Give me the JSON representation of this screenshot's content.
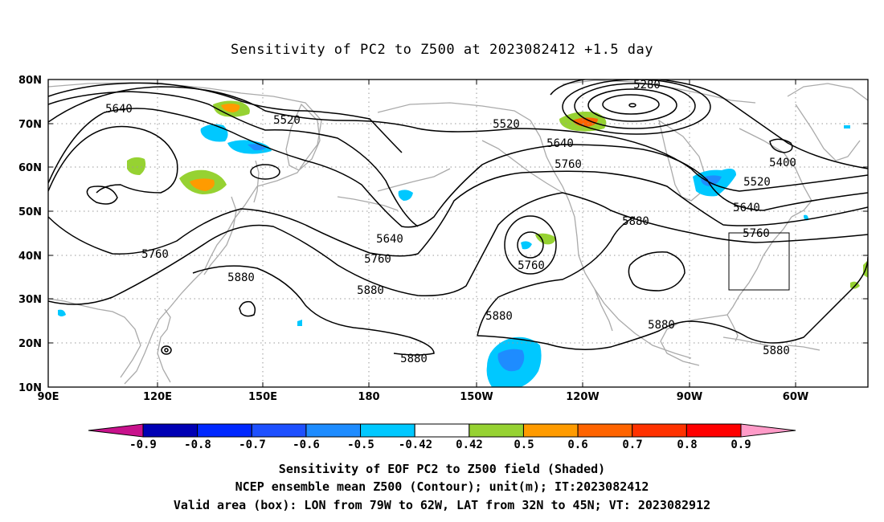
{
  "title": "Sensitivity of PC2 to Z500 at 2023082412 +1.5 day",
  "lat_labels": [
    "80N",
    "70N",
    "60N",
    "50N",
    "40N",
    "30N",
    "20N",
    "10N"
  ],
  "lon_labels": [
    "90E",
    "120E",
    "150E",
    "180",
    "150W",
    "120W",
    "90W",
    "60W"
  ],
  "contour_labels": [
    {
      "text": "5640"
    },
    {
      "text": "5520"
    },
    {
      "text": "5280"
    },
    {
      "text": "5520"
    },
    {
      "text": "5640"
    },
    {
      "text": "5760"
    },
    {
      "text": "5400"
    },
    {
      "text": "5520"
    },
    {
      "text": "5640"
    },
    {
      "text": "5760"
    },
    {
      "text": "5880"
    },
    {
      "text": "5640"
    },
    {
      "text": "5760"
    },
    {
      "text": "5760"
    },
    {
      "text": "5760"
    },
    {
      "text": "5880"
    },
    {
      "text": "5880"
    },
    {
      "text": "5880"
    },
    {
      "text": "5880"
    },
    {
      "text": "5880"
    },
    {
      "text": "5880"
    }
  ],
  "colorbar": {
    "labels": [
      "-0.9",
      "-0.8",
      "-0.7",
      "-0.6",
      "-0.5",
      "-0.42",
      "0.42",
      "0.5",
      "0.6",
      "0.7",
      "0.8",
      "0.9"
    ],
    "colors": [
      "#0000b4",
      "#0028ff",
      "#1e50ff",
      "#1e8cff",
      "#00c8ff",
      "#ffffff",
      "#96d232",
      "#ff9b00",
      "#ff6400",
      "#ff3200",
      "#ff0000"
    ],
    "low_color": "#c8128c",
    "high_color": "#ff9bc8"
  },
  "captions": [
    "Sensitivity of EOF PC2 to Z500 field (Shaded)",
    "NCEP ensemble mean Z500 (Contour); unit(m); IT:2023082412",
    "Valid area (box): LON from 79W to 62W, LAT from 32N to 45N; VT: 2023082912"
  ],
  "valid_box": {
    "lon_west": -79,
    "lon_east": -62,
    "lat_south": 32,
    "lat_north": 45
  }
}
